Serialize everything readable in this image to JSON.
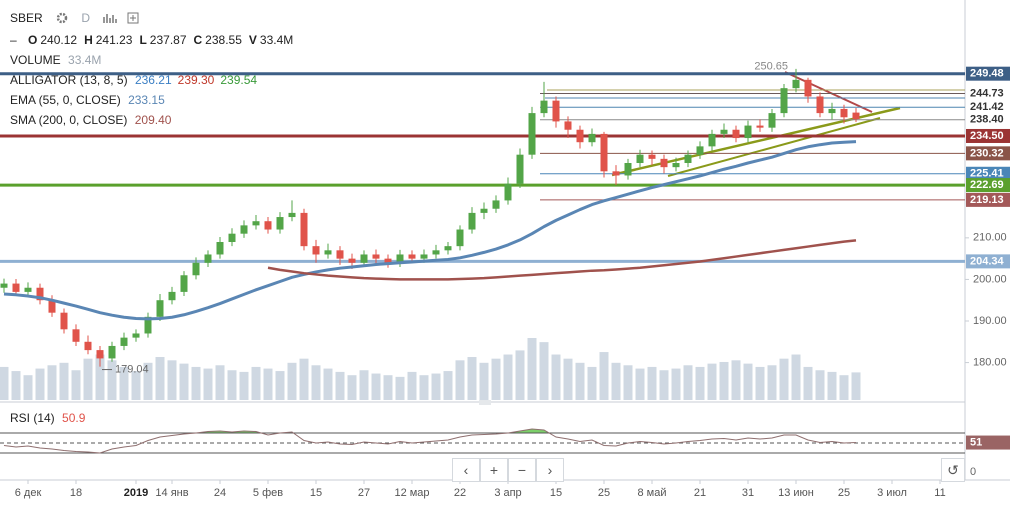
{
  "toolbar": {
    "symbol": "SBER",
    "interval": "D"
  },
  "navigation": {
    "buttons": [
      "‹",
      "+",
      "−",
      "›"
    ],
    "reset": "↺"
  },
  "chart_data": {
    "type": "candlestick",
    "categories": [
      null,
      null,
      "6 дек",
      null,
      null,
      null,
      "18",
      null,
      null,
      null,
      null,
      "2019",
      null,
      null,
      "14 янв",
      null,
      null,
      null,
      "24",
      null,
      null,
      null,
      "5 фев",
      null,
      null,
      null,
      "15",
      null,
      null,
      null,
      "27",
      null,
      null,
      null,
      "12 мар",
      null,
      null,
      null,
      "22",
      null,
      null,
      null,
      "3 апр",
      null,
      null,
      null,
      "15",
      null,
      null,
      null,
      "25",
      null,
      null,
      null,
      "8 май",
      null,
      null,
      null,
      "21",
      null,
      null,
      null,
      "31",
      null,
      null,
      null,
      "13 июн",
      null,
      null,
      null,
      "25",
      null,
      null,
      null,
      "3 июл",
      null,
      null,
      null,
      "11",
      null
    ],
    "open": [
      198,
      199,
      197,
      198,
      195,
      192,
      188,
      185,
      183,
      181,
      184,
      186,
      187,
      191,
      195,
      197,
      201,
      204,
      206,
      209,
      211,
      213,
      214,
      212,
      215,
      216,
      208,
      206,
      207,
      205,
      204,
      206,
      205,
      204,
      206,
      205,
      206,
      207,
      208,
      212,
      216,
      217,
      219,
      223,
      230,
      240,
      243,
      238,
      236,
      233,
      235,
      226,
      225,
      228,
      230,
      229,
      227,
      228,
      230,
      232,
      235,
      236,
      234,
      237,
      236.5,
      240,
      246,
      248,
      244,
      240,
      241,
      240.12,
      null,
      null,
      null,
      null,
      null,
      null,
      null,
      null
    ],
    "high": [
      200.2,
      200.1,
      199.3,
      199,
      196.2,
      193,
      189.2,
      186.5,
      184,
      185,
      187.2,
      188,
      192,
      196.5,
      198.2,
      202,
      205.3,
      207,
      210.2,
      212.3,
      214.2,
      215.5,
      215,
      216.2,
      219,
      217,
      209.5,
      208.6,
      208,
      206.2,
      207,
      207.2,
      206,
      207.1,
      207,
      207.2,
      208.3,
      209,
      213,
      217.4,
      218.5,
      220.2,
      224.5,
      231.5,
      241.5,
      247.5,
      244,
      239.2,
      237,
      236.3,
      235.5,
      227.5,
      229,
      231.2,
      231,
      230,
      229.3,
      231,
      233.2,
      236,
      237.5,
      237,
      238.2,
      238.5,
      241,
      247,
      250.65,
      248.5,
      245,
      242.5,
      242,
      241.23,
      null,
      null,
      null,
      null,
      null,
      null,
      null,
      null
    ],
    "low": [
      196.8,
      196,
      196.2,
      194,
      191,
      187,
      184,
      182,
      179.04,
      180.2,
      183,
      185,
      186,
      190,
      194,
      196,
      200,
      203,
      205,
      208,
      210,
      212,
      211,
      211,
      214,
      207,
      204,
      205,
      203.5,
      202.5,
      203,
      203.8,
      202.8,
      203,
      204,
      204,
      205,
      206,
      207,
      211,
      214.5,
      216,
      218,
      222,
      229,
      239,
      236.5,
      234,
      231.5,
      232,
      224.5,
      222.7,
      224,
      227,
      227.5,
      225.5,
      226,
      227,
      229,
      231,
      234,
      233,
      233,
      235.5,
      235.5,
      239,
      245,
      242.5,
      239,
      238.5,
      237.5,
      237.87,
      null,
      null,
      null,
      null,
      null,
      null,
      null,
      null
    ],
    "close": [
      199,
      197,
      198,
      195,
      192,
      188,
      185,
      183,
      181,
      184,
      186,
      187,
      191,
      195,
      197,
      201,
      204,
      206,
      209,
      211,
      213,
      214,
      212,
      215,
      216,
      208,
      206,
      207,
      205,
      204,
      206,
      205,
      204,
      206,
      205,
      206,
      207,
      208,
      212,
      216,
      217,
      219,
      223,
      230,
      240,
      243,
      238,
      236,
      233,
      235,
      226,
      225,
      228,
      230,
      229,
      227,
      228,
      230,
      232,
      235,
      236,
      234,
      237,
      236.5,
      240,
      246,
      248,
      244,
      240,
      241,
      239,
      238.55,
      null,
      null,
      null,
      null,
      null,
      null,
      null,
      null
    ],
    "up_color": "#53a548",
    "down_color": "#e0534a",
    "ylim": [
      171,
      266
    ],
    "yticks": [
      {
        "value": 180,
        "label": "180.00"
      },
      {
        "value": 190,
        "label": "190.00"
      },
      {
        "value": 200,
        "label": "200.00"
      },
      {
        "value": 210,
        "label": "210.00"
      }
    ],
    "ohlc_keys": [
      "O",
      "H",
      "L",
      "C",
      "V"
    ],
    "volume": {
      "name": "VOLUME",
      "value_label": "33.4M",
      "color": "#cfd8e2",
      "values": [
        40,
        35,
        30,
        38,
        42,
        45,
        36,
        50,
        55,
        48,
        40,
        35,
        45,
        52,
        48,
        44,
        40,
        38,
        42,
        36,
        34,
        40,
        38,
        35,
        45,
        50,
        42,
        38,
        34,
        30,
        36,
        32,
        30,
        28,
        34,
        30,
        32,
        35,
        48,
        52,
        45,
        50,
        55,
        60,
        75,
        70,
        55,
        50,
        45,
        40,
        58,
        45,
        42,
        38,
        40,
        36,
        38,
        42,
        40,
        44,
        46,
        48,
        44,
        40,
        42,
        50,
        55,
        40,
        36,
        34,
        30,
        33.4,
        null,
        null,
        null,
        null,
        null,
        null,
        null,
        null
      ]
    },
    "alligator": {
      "name": "ALLIGATOR (13, 8, 5)",
      "value_labels": [
        {
          "text": "236.21",
          "color": "#3b7fc4"
        },
        {
          "text": "239.30",
          "color": "#c0392b"
        },
        {
          "text": "239.54",
          "color": "#3a9a3a"
        }
      ]
    },
    "series": [
      {
        "name": "EMA (55, 0, CLOSE)",
        "color": "#5a86b4",
        "width": 3,
        "values": [
          196.5,
          196.3,
          196,
          195.6,
          195,
          194.3,
          193.6,
          192.8,
          192,
          191.4,
          190.9,
          190.6,
          190.5,
          190.6,
          190.9,
          191.5,
          192.3,
          193.2,
          194.2,
          195.3,
          196.4,
          197.5,
          198.5,
          199.5,
          200.5,
          201.2,
          201.8,
          202.3,
          202.7,
          203,
          203.3,
          203.6,
          203.8,
          204,
          204.2,
          204.4,
          204.6,
          204.8,
          205.2,
          205.8,
          206.5,
          207.3,
          208.3,
          209.5,
          211,
          212.7,
          214.2,
          215.5,
          216.8,
          218,
          218.9,
          219.7,
          220.5,
          221.3,
          222.1,
          222.8,
          223.5,
          224.2,
          224.9,
          225.7,
          226.5,
          227.2,
          228,
          228.7,
          229.4,
          230.3,
          231.2,
          231.9,
          232.4,
          232.8,
          233,
          233.15,
          null,
          null,
          null,
          null,
          null,
          null,
          null,
          null
        ]
      },
      {
        "name": "SMA (200, 0, CLOSE)",
        "color": "#a0524d",
        "width": 2.5,
        "value_label": "209.40",
        "values": [
          null,
          null,
          null,
          null,
          null,
          null,
          null,
          null,
          null,
          null,
          null,
          null,
          null,
          null,
          null,
          null,
          null,
          null,
          null,
          null,
          null,
          null,
          202.8,
          202.3,
          201.9,
          201.5,
          201.2,
          200.9,
          200.7,
          200.5,
          200.3,
          200.2,
          200.1,
          200,
          200,
          200,
          200,
          200,
          200.1,
          200.2,
          200.3,
          200.5,
          200.7,
          200.9,
          201.1,
          201.3,
          201.5,
          201.7,
          201.9,
          202.1,
          202.2,
          202.4,
          202.6,
          202.8,
          203.1,
          203.4,
          203.7,
          204,
          204.3,
          204.7,
          205.1,
          205.5,
          205.9,
          206.3,
          206.7,
          207.1,
          207.5,
          207.9,
          208.3,
          208.7,
          209.1,
          209.4,
          null,
          null,
          null,
          null,
          null,
          null,
          null,
          null
        ]
      }
    ],
    "levels": [
      {
        "value": 249.48,
        "label": "249.48",
        "color": "#3d5f86",
        "filled": true,
        "thick": true
      },
      {
        "value": 244.73,
        "label": "244.73",
        "color": "#6b5a5a",
        "filled": false,
        "thick": false
      },
      {
        "value": 241.42,
        "label": "241.42",
        "color": "#4f86b0",
        "filled": false,
        "thick": false
      },
      {
        "value": 238.4,
        "label": "238.40",
        "color": "#8a8a8a",
        "filled": false,
        "thick": false
      },
      {
        "value": 234.5,
        "label": "234.50",
        "color": "#9b3434",
        "filled": true,
        "thick": true
      },
      {
        "value": 230.32,
        "label": "230.32",
        "color": "#8a5448",
        "filled": true,
        "thick": false
      },
      {
        "value": 225.41,
        "label": "225.41",
        "color": "#4a86b8",
        "filled": true,
        "thick": false
      },
      {
        "value": 222.69,
        "label": "222.69",
        "color": "#5aa02c",
        "filled": true,
        "thick": true
      },
      {
        "value": 219.13,
        "label": "219.13",
        "color": "#a35858",
        "filled": true,
        "thick": false
      },
      {
        "value": 204.34,
        "label": "204.34",
        "color": "#8fb0d2",
        "filled": true,
        "thick": true
      }
    ],
    "rsi": {
      "name": "RSI (14)",
      "color": "#8f6f6f",
      "fill": "#7ccf6a",
      "last_label": "51",
      "ylim": [
        0,
        100
      ],
      "yticks": [
        0
      ],
      "guides": [
        70,
        50,
        30
      ],
      "values": [
        45,
        42,
        44,
        40,
        38,
        35,
        33,
        32,
        30,
        38,
        42,
        45,
        55,
        62,
        65,
        68,
        70,
        73,
        74,
        72,
        74,
        73,
        66,
        70,
        72,
        55,
        50,
        52,
        48,
        47,
        52,
        50,
        48,
        53,
        50,
        52,
        54,
        56,
        62,
        66,
        67,
        68,
        70,
        74,
        78,
        76,
        62,
        58,
        53,
        56,
        45,
        44,
        50,
        53,
        51,
        48,
        50,
        53,
        55,
        58,
        59,
        56,
        60,
        58,
        60,
        66,
        66,
        56,
        51,
        53,
        50,
        50.9,
        null,
        null,
        null,
        null,
        null,
        null,
        null,
        null
      ]
    }
  }
}
